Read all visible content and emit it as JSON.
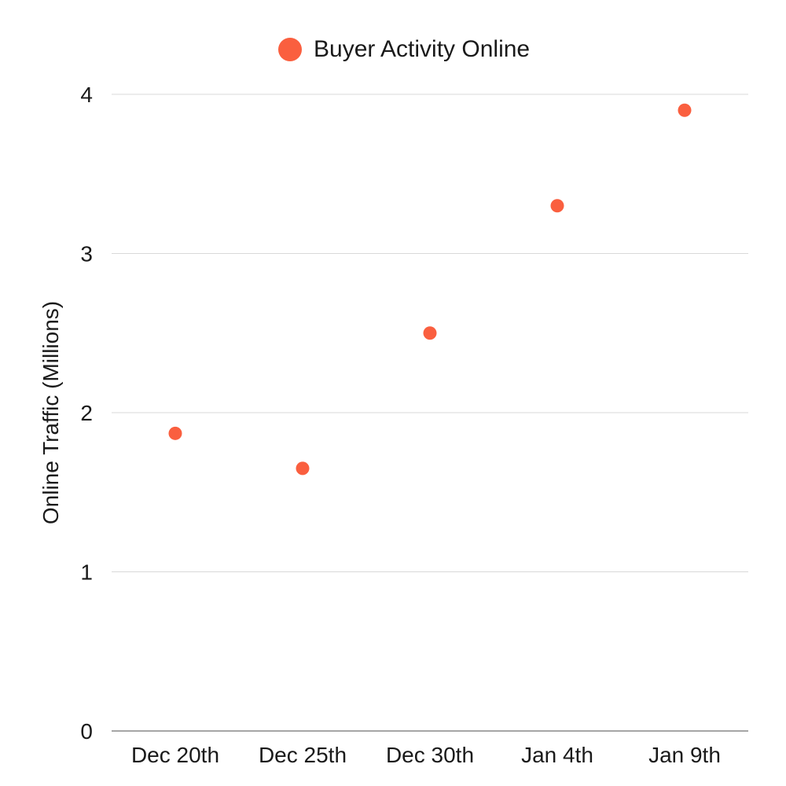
{
  "chart_data": {
    "type": "scatter",
    "title": "",
    "xlabel": "",
    "ylabel": "Online Traffic (Millions)",
    "categories": [
      "Dec 20th",
      "Dec 25th",
      "Dec 30th",
      "Jan 4th",
      "Jan 9th"
    ],
    "series": [
      {
        "name": "Buyer Activity Online",
        "values": [
          1.87,
          1.65,
          2.5,
          3.3,
          3.9
        ],
        "color": "#fa5f3f"
      }
    ],
    "ylim": [
      0,
      4
    ],
    "yticks": [
      "0",
      "1",
      "2",
      "3",
      "4"
    ],
    "grid": true,
    "legend": "top-center"
  }
}
